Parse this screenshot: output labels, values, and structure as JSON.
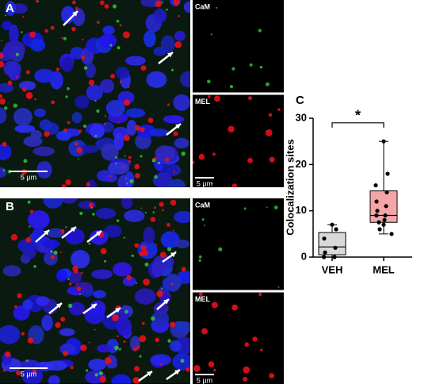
{
  "panels": [
    {
      "label": "A",
      "scale_bar": "5 μm",
      "insets": [
        {
          "label": "CaM"
        },
        {
          "label": "MEL",
          "scale_bar": "5 μm"
        }
      ]
    },
    {
      "label": "B",
      "scale_bar": "5 μm",
      "insets": [
        {
          "label": "CaM"
        },
        {
          "label": "MEL",
          "scale_bar": "5 μm"
        }
      ]
    }
  ],
  "chart_data": {
    "type": "box",
    "panel_label": "C",
    "y_label": "Colocalization sites",
    "annotation": "*",
    "categories": [
      "VEH",
      "MEL"
    ],
    "series": [
      {
        "name": "VEH",
        "color": "#d9d9d9",
        "whisker_low": 0,
        "q1": 0.5,
        "median": 2.2,
        "q3": 5.3,
        "whisker_high": 7,
        "points": [
          7,
          6,
          4,
          2,
          1,
          0,
          0
        ]
      },
      {
        "name": "MEL",
        "color": "#f4a6a6",
        "whisker_low": 5,
        "q1": 7.5,
        "median": 9,
        "q3": 14.3,
        "whisker_high": 25,
        "points": [
          25,
          18,
          15.5,
          14,
          12,
          11,
          10,
          9,
          9,
          8,
          7.5,
          7,
          6,
          5
        ]
      }
    ],
    "ylim": [
      0,
      30
    ],
    "yticks": [
      0,
      10,
      20,
      30
    ]
  }
}
